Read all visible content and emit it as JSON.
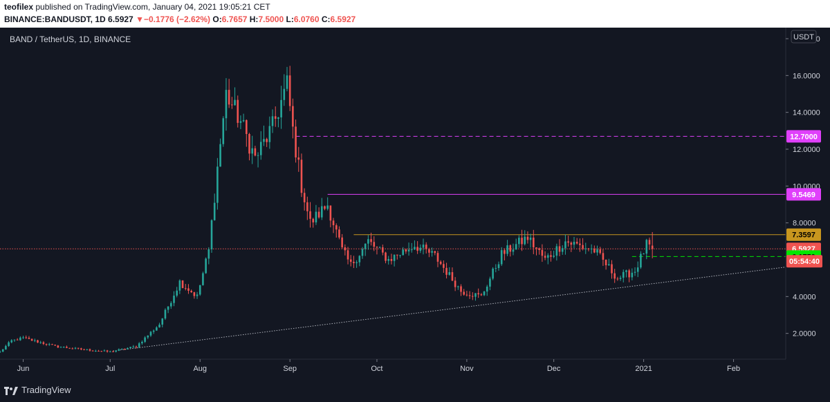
{
  "header": {
    "publisher": "teofilex",
    "published_text": "published on TradingView.com, January 04, 2021 19:05:21 CET",
    "symbol": "BINANCE:BANDUSDT, 1D",
    "last": "6.5927",
    "change_arrow": "▼",
    "change": "−0.1776 (−2.62%)",
    "open_label": "O:",
    "open": "6.7657",
    "high_label": "H:",
    "high": "7.5000",
    "low_label": "L:",
    "low": "6.0760",
    "close_label": "C:",
    "close": "6.5927"
  },
  "footer": {
    "brand": "TradingView"
  },
  "chart_data": {
    "type": "candlestick",
    "title": "BAND / TetherUS, 1D, BINANCE",
    "currency_label": "USDT",
    "y_ticks": [
      "18.0000",
      "16.0000",
      "14.0000",
      "12.0000",
      "10.0000",
      "8.0000",
      "4.0000",
      "2.0000"
    ],
    "y_tick_values": [
      18,
      16,
      14,
      12,
      10,
      8,
      4,
      2
    ],
    "ylim": [
      0.6,
      18.6
    ],
    "x_ticks": [
      "Jun",
      "Jul",
      "Aug",
      "Sep",
      "Oct",
      "Nov",
      "Dec",
      "2021",
      "Feb"
    ],
    "x_tick_dates": [
      "2020-06-01",
      "2020-07-01",
      "2020-08-01",
      "2020-09-01",
      "2020-10-01",
      "2020-11-01",
      "2020-12-01",
      "2021-01-01",
      "2021-02-01"
    ],
    "xlim": [
      "2020-05-24",
      "2021-02-19"
    ],
    "up_color": "#26a69a",
    "down_color": "#ef5350",
    "grid": false,
    "price_levels": [
      {
        "value": 12.7,
        "label": "12.7000",
        "color": "#e040fb",
        "style": "dashed",
        "start_date": "2020-09-03"
      },
      {
        "value": 9.5469,
        "label": "9.5469",
        "color": "#e040fb",
        "style": "solid",
        "start_date": "2020-09-14"
      },
      {
        "value": 7.3597,
        "label": "7.3597",
        "color": "#c8961e",
        "style": "solid",
        "start_date": "2020-09-23"
      },
      {
        "value": 6.5927,
        "label": "6.5927",
        "color": "#ef5350",
        "style": "dotted",
        "start_date": "2020-05-24"
      },
      {
        "value": 6.175,
        "label": "6.1750",
        "color": "#00e600",
        "style": "dashed",
        "start_date": "2020-12-28"
      }
    ],
    "countdown": "05:54:40",
    "trendline": {
      "from_date": "2020-07-02",
      "from_value": 1.05,
      "to_date": "2021-02-19",
      "to_value": 5.6,
      "color": "#b2b5be"
    },
    "key_points": [
      {
        "date": "2020-05-24",
        "value": 1.0
      },
      {
        "date": "2020-05-28",
        "value": 1.6
      },
      {
        "date": "2020-06-01",
        "value": 1.75
      },
      {
        "date": "2020-06-12",
        "value": 1.3
      },
      {
        "date": "2020-06-20",
        "value": 1.15
      },
      {
        "date": "2020-07-01",
        "value": 1.0
      },
      {
        "date": "2020-07-10",
        "value": 1.3
      },
      {
        "date": "2020-07-18",
        "value": 2.5
      },
      {
        "date": "2020-07-25",
        "value": 4.8
      },
      {
        "date": "2020-07-31",
        "value": 4.0
      },
      {
        "date": "2020-08-04",
        "value": 6.5
      },
      {
        "date": "2020-08-07",
        "value": 11.0
      },
      {
        "date": "2020-08-10",
        "value": 15.0
      },
      {
        "date": "2020-08-15",
        "value": 13.5
      },
      {
        "date": "2020-08-20",
        "value": 11.5
      },
      {
        "date": "2020-08-26",
        "value": 13.2
      },
      {
        "date": "2020-08-31",
        "value": 15.5
      },
      {
        "date": "2020-09-02",
        "value": 13.0
      },
      {
        "date": "2020-09-05",
        "value": 10.0
      },
      {
        "date": "2020-09-08",
        "value": 8.0
      },
      {
        "date": "2020-09-14",
        "value": 9.0
      },
      {
        "date": "2020-09-19",
        "value": 6.5
      },
      {
        "date": "2020-09-22",
        "value": 5.7
      },
      {
        "date": "2020-09-28",
        "value": 7.0
      },
      {
        "date": "2020-10-05",
        "value": 6.0
      },
      {
        "date": "2020-10-14",
        "value": 6.8
      },
      {
        "date": "2020-10-21",
        "value": 6.2
      },
      {
        "date": "2020-10-30",
        "value": 4.3
      },
      {
        "date": "2020-11-06",
        "value": 4.0
      },
      {
        "date": "2020-11-13",
        "value": 6.3
      },
      {
        "date": "2020-11-22",
        "value": 7.2
      },
      {
        "date": "2020-11-28",
        "value": 6.0
      },
      {
        "date": "2020-12-05",
        "value": 7.0
      },
      {
        "date": "2020-12-15",
        "value": 6.5
      },
      {
        "date": "2020-12-23",
        "value": 5.0
      },
      {
        "date": "2020-12-29",
        "value": 5.4
      },
      {
        "date": "2021-01-02",
        "value": 6.8
      },
      {
        "date": "2021-01-04",
        "value": 6.5927
      }
    ]
  }
}
